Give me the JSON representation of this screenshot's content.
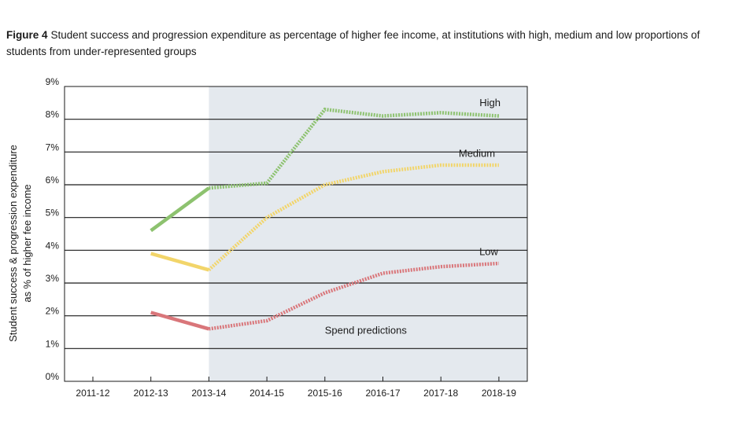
{
  "caption": {
    "figure_label": "Figure 4",
    "text": "Student success and progression expenditure as percentage of higher fee income, at institutions with high, medium and low proportions of students from under-represented groups"
  },
  "chart_data": {
    "type": "line",
    "title": "Student success and progression expenditure as percentage of higher fee income, at institutions with high, medium and low proportions of students from under-represented groups",
    "ylabel_line1": "Student success & progression expenditure",
    "ylabel_line2": "as % of higher fee income",
    "xlabel": "",
    "categories": [
      "2011-12",
      "2012-13",
      "2013-14",
      "2014-15",
      "2015-16",
      "2016-17",
      "2017-18",
      "2018-19"
    ],
    "yticks": [
      "0%",
      "1%",
      "2%",
      "3%",
      "4%",
      "5%",
      "6%",
      "7%",
      "8%",
      "9%"
    ],
    "ylim": [
      0,
      9
    ],
    "grid": true,
    "prediction_start": "2013-14",
    "prediction_label": "Spend predictions",
    "series": [
      {
        "name": "High",
        "color": "#8dc26f",
        "actual": [
          null,
          4.6,
          5.9
        ],
        "predicted": [
          null,
          null,
          5.9,
          6.05,
          8.3,
          8.1,
          8.2,
          8.1
        ]
      },
      {
        "name": "Medium",
        "color": "#f2d56a",
        "actual": [
          null,
          3.9,
          3.4
        ],
        "predicted": [
          null,
          null,
          3.4,
          5.0,
          6.0,
          6.4,
          6.6,
          6.6
        ]
      },
      {
        "name": "Low",
        "color": "#d9767a",
        "actual": [
          null,
          2.1,
          1.6
        ],
        "predicted": [
          null,
          null,
          1.6,
          1.85,
          2.7,
          3.3,
          3.5,
          3.6
        ]
      }
    ]
  }
}
